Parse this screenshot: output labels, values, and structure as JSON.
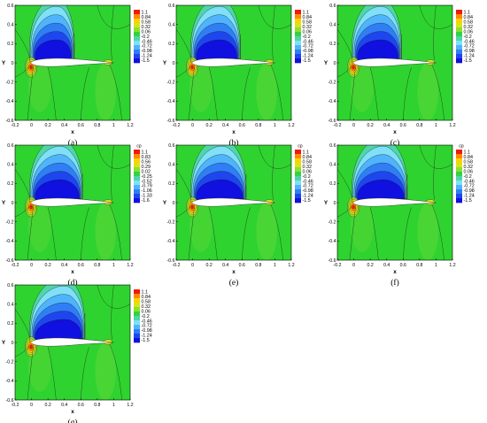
{
  "colors": {
    "background": "#2fd32f",
    "colormap": [
      "#1010e0",
      "#1e46ee",
      "#2f7ef6",
      "#4fb4fb",
      "#7fe0f8",
      "#4ed6a8",
      "#33d244",
      "#8ee02e",
      "#d6e41c",
      "#ffd000",
      "#ff8800",
      "#ee1a0c"
    ],
    "contour_line": "#1a1a1a",
    "airfoil": "#ffffff"
  },
  "chart_data": [
    {
      "panel": "a",
      "type": "contour",
      "caption": "(a)",
      "xlabel": "x",
      "ylabel": "Y",
      "xlim": [
        -0.2,
        1.2
      ],
      "ylim": [
        -0.6,
        0.6
      ],
      "xticks": [
        "-0.2",
        "0",
        "0.2",
        "0.4",
        "0.6",
        "0.8",
        "1",
        "1.2"
      ],
      "yticks": [
        "0.6",
        "0.4",
        "0.2",
        "0",
        "-0.2",
        "-0.4",
        "-0.6"
      ],
      "legend_title": "",
      "legend_levels": [
        "1.1",
        "0.84",
        "0.58",
        "0.32",
        "0.06",
        "-0.2",
        "-0.46",
        "-0.72",
        "-0.98",
        "-1.24",
        "-1.5"
      ],
      "suction_peak_x": 0.3,
      "suction_extent_x": 0.52,
      "shock_x": 0.52
    },
    {
      "panel": "b",
      "type": "contour",
      "caption": "(b)",
      "xlabel": "x",
      "ylabel": "Y",
      "xlim": [
        -0.2,
        1.2
      ],
      "ylim": [
        -0.6,
        0.6
      ],
      "xticks": [
        "-0.2",
        "0",
        "0.2",
        "0.4",
        "0.6",
        "0.8",
        "1",
        "1.2"
      ],
      "yticks": [
        "0.6",
        "0.4",
        "0.2",
        "0",
        "-0.2",
        "-0.4",
        "-0.6"
      ],
      "legend_title": "",
      "legend_levels": [
        "1.1",
        "0.84",
        "0.58",
        "0.32",
        "0.06",
        "-0.2",
        "-0.46",
        "-0.72",
        "-0.98",
        "-1.24",
        "-1.5"
      ],
      "suction_peak_x": 0.33,
      "suction_extent_x": 0.58,
      "shock_x": 0.58
    },
    {
      "panel": "c",
      "type": "contour",
      "caption": "(c)",
      "xlabel": "x",
      "ylabel": "Y",
      "xlim": [
        -0.2,
        1.2
      ],
      "ylim": [
        -0.6,
        0.6
      ],
      "xticks": [
        "-0.2",
        "0",
        "0.2",
        "0.4",
        "0.6",
        "0.8",
        "1",
        "1.2"
      ],
      "yticks": [
        "0.6",
        "0.4",
        "0.2",
        "0",
        "-0.2",
        "-0.4",
        "-0.6"
      ],
      "legend_title": "",
      "legend_levels": [
        "1.1",
        "0.84",
        "0.58",
        "0.32",
        "0.06",
        "-0.2",
        "-0.46",
        "-0.72",
        "-0.98",
        "-1.24",
        "-1.5"
      ],
      "suction_peak_x": 0.33,
      "suction_extent_x": 0.58,
      "shock_x": 0.58
    },
    {
      "panel": "d",
      "type": "contour",
      "caption": "(d)",
      "xlabel": "x",
      "ylabel": "Y",
      "xlim": [
        -0.2,
        1.2
      ],
      "ylim": [
        -0.6,
        0.6
      ],
      "xticks": [
        "-0.2",
        "0",
        "0.2",
        "0.4",
        "0.6",
        "0.8",
        "1",
        "1.2"
      ],
      "yticks": [
        "0.6",
        "0.4",
        "0.2",
        "0",
        "-0.2",
        "-0.4",
        "-0.6"
      ],
      "legend_title": "cp",
      "legend_levels": [
        "1.1",
        "0.83",
        "0.56",
        "0.29",
        "0.02",
        "-0.25",
        "-0.52",
        "-0.79",
        "-1.06",
        "-1.33",
        "-1.6"
      ],
      "suction_peak_x": 0.35,
      "suction_extent_x": 0.62,
      "shock_x": 0.62
    },
    {
      "panel": "e",
      "type": "contour",
      "caption": "(e)",
      "xlabel": "x",
      "ylabel": "Y",
      "xlim": [
        -0.2,
        1.2
      ],
      "ylim": [
        -0.6,
        0.6
      ],
      "xticks": [
        "-0.2",
        "0",
        "0.2",
        "0.4",
        "0.6",
        "0.8",
        "1",
        "1.2"
      ],
      "yticks": [
        "0.6",
        "0.4",
        "0.2",
        "0",
        "-0.2",
        "-0.4",
        "-0.6"
      ],
      "legend_title": "cp",
      "legend_levels": [
        "1.1",
        "0.84",
        "0.58",
        "0.32",
        "0.06",
        "-0.2",
        "-0.46",
        "-0.72",
        "-0.98",
        "-1.24",
        "-1.5"
      ],
      "suction_peak_x": 0.36,
      "suction_extent_x": 0.65,
      "shock_x": 0.65
    },
    {
      "panel": "f",
      "type": "contour",
      "caption": "(f)",
      "xlabel": "x",
      "ylabel": "Y",
      "xlim": [
        -0.2,
        1.2
      ],
      "ylim": [
        -0.6,
        0.6
      ],
      "xticks": [
        "-0.2",
        "0",
        "0.2",
        "0.4",
        "0.6",
        "0.8",
        "1",
        "1.2"
      ],
      "yticks": [
        "0.6",
        "0.4",
        "0.2",
        "0",
        "-0.2",
        "-0.4",
        "-0.6"
      ],
      "legend_title": "cp",
      "legend_levels": [
        "1.1",
        "0.84",
        "0.58",
        "0.32",
        "0.06",
        "-0.2",
        "-0.46",
        "-0.72",
        "-0.98",
        "-1.24",
        "-1.5"
      ],
      "suction_peak_x": 0.36,
      "suction_extent_x": 0.65,
      "shock_x": 0.65
    },
    {
      "panel": "g",
      "type": "contour",
      "caption": "(g)",
      "xlabel": "x",
      "ylabel": "Y",
      "xlim": [
        -0.2,
        1.2
      ],
      "ylim": [
        -0.6,
        0.6
      ],
      "xticks": [
        "-0.2",
        "0",
        "0.2",
        "0.4",
        "0.6",
        "0.8",
        "1",
        "1.2"
      ],
      "yticks": [
        "0.6",
        "0.4",
        "0.2",
        "0",
        "-0.2",
        "-0.4",
        "-0.6"
      ],
      "legend_title": "",
      "legend_levels": [
        "1.1",
        "0.84",
        "0.58",
        "0.32",
        "0.06",
        "-0.2",
        "-0.46",
        "-0.72",
        "-0.98",
        "-1.24",
        "-1.5"
      ],
      "suction_peak_x": 0.4,
      "suction_extent_x": 0.65,
      "shock_x": 0.65
    }
  ]
}
